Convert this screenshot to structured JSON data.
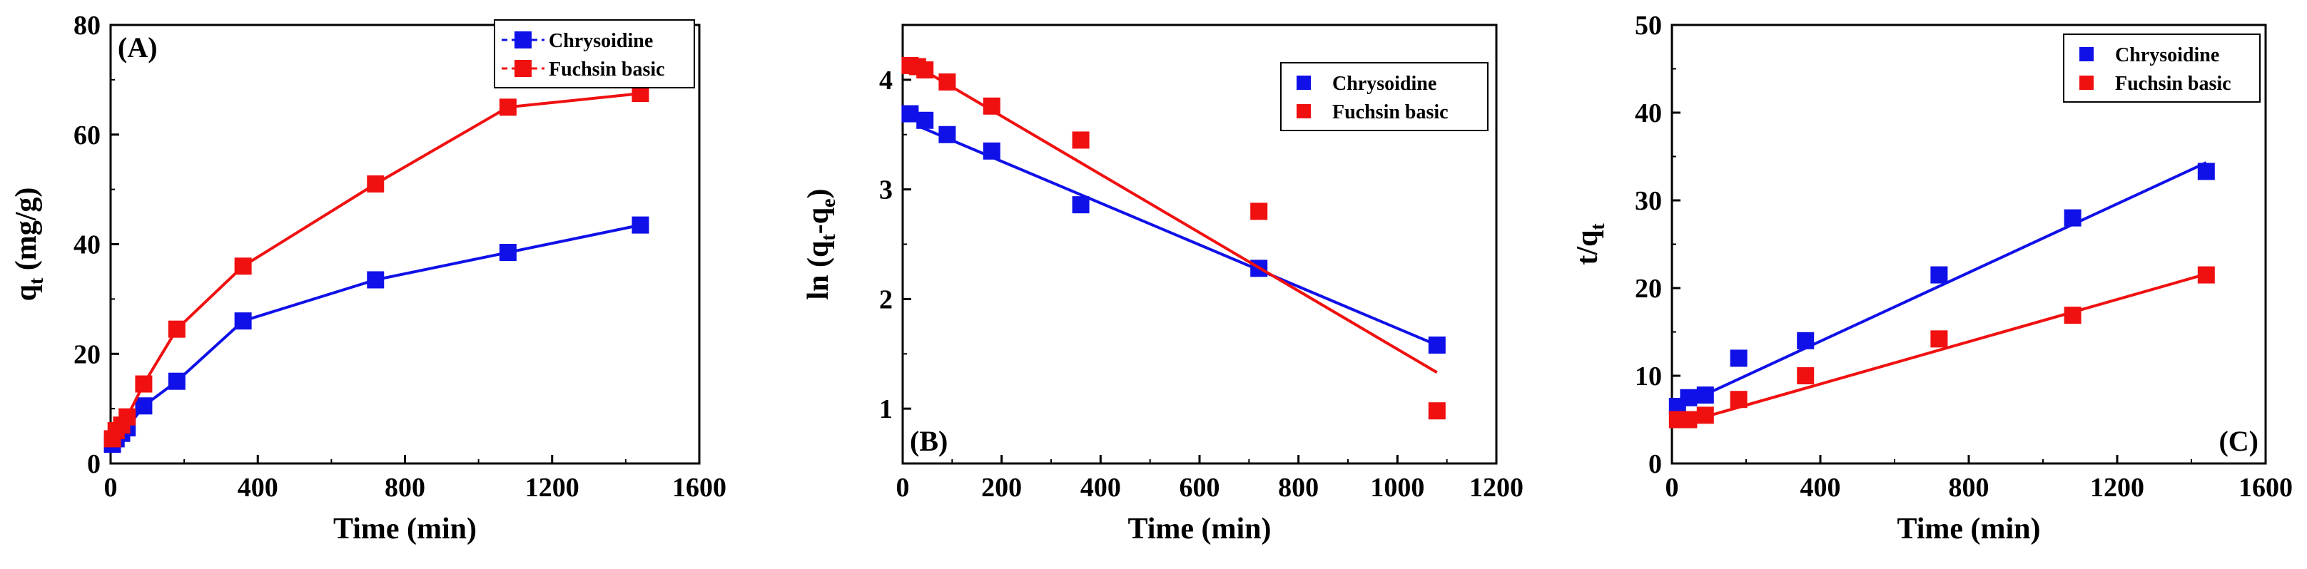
{
  "chart_data": [
    {
      "type": "line",
      "panel_label": "(A)",
      "xlabel": "Time (min)",
      "ylabel_main": "q",
      "ylabel_sub": "t",
      "ylabel_tail": " (mg/g)",
      "xlim": [
        0,
        1600
      ],
      "ylim": [
        0,
        80
      ],
      "xticks": [
        0,
        400,
        800,
        1200,
        1600
      ],
      "yticks": [
        0,
        20,
        40,
        60,
        80
      ],
      "legend_position": "top-right",
      "legend_style": "line-marker-dashed",
      "series": [
        {
          "name": "Chrysoidine",
          "color": "#1010e8",
          "connect": true,
          "x": [
            5,
            15,
            30,
            45,
            90,
            180,
            360,
            720,
            1080,
            1440
          ],
          "y": [
            3.5,
            4.5,
            5.5,
            6.5,
            10.5,
            15,
            26,
            33.5,
            38.5,
            43.5
          ]
        },
        {
          "name": "Fuchsin basic",
          "color": "#f01010",
          "connect": true,
          "x": [
            5,
            15,
            30,
            45,
            90,
            180,
            360,
            720,
            1080,
            1440
          ],
          "y": [
            4.5,
            6,
            7,
            8.5,
            14.5,
            24.5,
            36,
            51,
            65,
            67.5
          ]
        }
      ]
    },
    {
      "type": "scatter",
      "panel_label": "(B)",
      "xlabel": "Time (min)",
      "ylabel_main": "ln (q",
      "ylabel_sub1": "t",
      "ylabel_mid": "-q",
      "ylabel_sub2": "e",
      "ylabel_tail": ")",
      "xlim": [
        0,
        1200
      ],
      "ylim": [
        0.5,
        4.5
      ],
      "xticks": [
        0,
        200,
        400,
        600,
        800,
        1000,
        1200
      ],
      "yticks": [
        1,
        2,
        3,
        4
      ],
      "legend_position": "top-right",
      "legend_style": "marker-only",
      "series": [
        {
          "name": "Chrysoidine",
          "color": "#1010e8",
          "x": [
            15,
            45,
            90,
            180,
            360,
            720,
            1080
          ],
          "y": [
            3.69,
            3.63,
            3.5,
            3.35,
            2.86,
            2.28,
            1.58
          ],
          "fit": [
            [
              30,
              3.58
            ],
            [
              1080,
              1.58
            ]
          ]
        },
        {
          "name": "Fuchsin basic",
          "color": "#f01010",
          "x": [
            15,
            30,
            45,
            90,
            180,
            360,
            720,
            1080
          ],
          "y": [
            4.13,
            4.12,
            4.09,
            3.98,
            3.76,
            3.45,
            2.8,
            0.98
          ],
          "fit": [
            [
              30,
              4.12
            ],
            [
              1080,
              1.33
            ]
          ]
        }
      ]
    },
    {
      "type": "scatter",
      "panel_label": "(C)",
      "xlabel": "Time (min)",
      "ylabel_main": "t/q",
      "ylabel_sub": "t",
      "ylabel_tail": "",
      "xlim": [
        0,
        1600
      ],
      "ylim": [
        0,
        50
      ],
      "xticks": [
        0,
        400,
        800,
        1200,
        1600
      ],
      "yticks": [
        0,
        10,
        20,
        30,
        40,
        50
      ],
      "legend_position": "top-right",
      "legend_style": "marker-only",
      "series": [
        {
          "name": "Chrysoidine",
          "color": "#1010e8",
          "x": [
            15,
            45,
            90,
            180,
            360,
            720,
            1080,
            1440
          ],
          "y": [
            6.5,
            7.5,
            7.8,
            12,
            14,
            21.5,
            28,
            33.3
          ],
          "fit": [
            [
              5,
              6.2
            ],
            [
              1440,
              34.3
            ]
          ]
        },
        {
          "name": "Fuchsin basic",
          "color": "#f01010",
          "x": [
            15,
            45,
            90,
            180,
            360,
            720,
            1080,
            1440
          ],
          "y": [
            5,
            5,
            5.5,
            7.3,
            10,
            14.2,
            16.9,
            21.5
          ],
          "fit": [
            [
              5,
              4.3
            ],
            [
              1440,
              21.6
            ]
          ]
        }
      ]
    }
  ]
}
